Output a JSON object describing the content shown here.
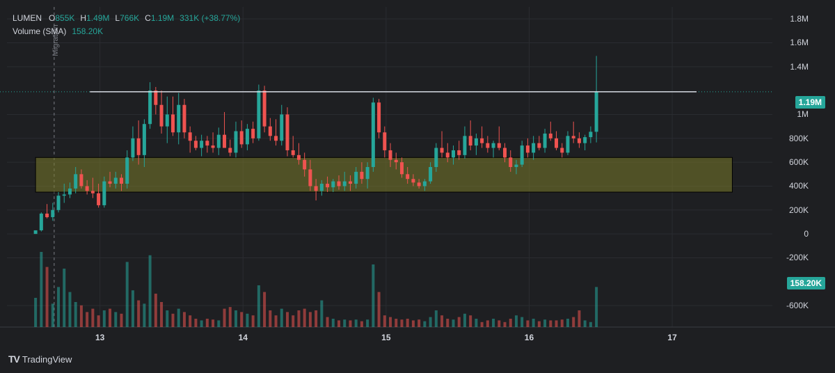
{
  "header": {
    "symbol": "LUMEN",
    "o_label": "O",
    "o_value": "855K",
    "h_label": "H",
    "h_value": "1.49M",
    "l_label": "L",
    "l_value": "766K",
    "c_label": "C",
    "c_value": "1.19M",
    "change": "331K (+38.77%)",
    "volume_label": "Volume (SMA)",
    "volume_value": "158.20K"
  },
  "price_badge": "1.19M",
  "volume_badge": "158.20K",
  "migration_label": "Migration",
  "brand": "TradingView",
  "colors": {
    "up": "#26a69a",
    "down": "#ef5350",
    "zone": "#7a7a2a",
    "background": "#1e1f22"
  },
  "chart_data": {
    "type": "candlestick",
    "y_ticks": [
      "1.8M",
      "1.6M",
      "1.4M",
      "1M",
      "800K",
      "600K",
      "400K",
      "200K",
      "0",
      "-200K",
      "-600K"
    ],
    "y_tick_values": [
      1800000,
      1600000,
      1400000,
      1000000,
      800000,
      600000,
      400000,
      200000,
      0,
      -200000,
      -600000
    ],
    "ylim": [
      -780000,
      1900000
    ],
    "x_ticks": [
      "13",
      "14",
      "15",
      "16",
      "17"
    ],
    "x_tick_values": [
      13,
      14,
      15,
      16,
      17
    ],
    "xlim": [
      12.35,
      17.7
    ],
    "resistance": {
      "value": 1190000,
      "x_start": 12.93,
      "x_end": 17.17
    },
    "zone": {
      "low": 350000,
      "high": 640000,
      "x_start": 12.55,
      "x_end": 17.42
    },
    "migration_x": 12.68,
    "candles": [
      [
        12.55,
        0,
        30000,
        0,
        30000
      ],
      [
        12.59,
        30000,
        180000,
        20000,
        170000
      ],
      [
        12.63,
        170000,
        250000,
        130000,
        140000
      ],
      [
        12.67,
        140000,
        260000,
        110000,
        200000
      ],
      [
        12.71,
        200000,
        350000,
        180000,
        320000
      ],
      [
        12.75,
        320000,
        420000,
        260000,
        330000
      ],
      [
        12.79,
        330000,
        430000,
        300000,
        380000
      ],
      [
        12.83,
        380000,
        560000,
        340000,
        500000
      ],
      [
        12.87,
        500000,
        540000,
        380000,
        400000
      ],
      [
        12.91,
        400000,
        450000,
        330000,
        360000
      ],
      [
        12.95,
        360000,
        470000,
        300000,
        340000
      ],
      [
        12.99,
        340000,
        420000,
        220000,
        240000
      ],
      [
        13.03,
        240000,
        480000,
        220000,
        440000
      ],
      [
        13.07,
        440000,
        520000,
        390000,
        420000
      ],
      [
        13.11,
        420000,
        520000,
        380000,
        470000
      ],
      [
        13.15,
        470000,
        500000,
        360000,
        420000
      ],
      [
        13.19,
        420000,
        700000,
        380000,
        640000
      ],
      [
        13.23,
        640000,
        900000,
        610000,
        800000
      ],
      [
        13.27,
        800000,
        950000,
        580000,
        660000
      ],
      [
        13.31,
        660000,
        960000,
        560000,
        920000
      ],
      [
        13.35,
        920000,
        1270000,
        880000,
        1200000
      ],
      [
        13.39,
        1200000,
        1230000,
        1000000,
        1080000
      ],
      [
        13.43,
        1080000,
        1200000,
        840000,
        900000
      ],
      [
        13.47,
        900000,
        1150000,
        760000,
        1000000
      ],
      [
        13.51,
        1000000,
        1150000,
        820000,
        850000
      ],
      [
        13.55,
        850000,
        1180000,
        750000,
        1080000
      ],
      [
        13.59,
        1080000,
        1130000,
        800000,
        850000
      ],
      [
        13.63,
        850000,
        900000,
        680000,
        780000
      ],
      [
        13.67,
        780000,
        820000,
        700000,
        720000
      ],
      [
        13.71,
        720000,
        830000,
        650000,
        780000
      ],
      [
        13.75,
        780000,
        820000,
        680000,
        740000
      ],
      [
        13.79,
        740000,
        850000,
        680000,
        720000
      ],
      [
        13.83,
        720000,
        890000,
        660000,
        830000
      ],
      [
        13.87,
        830000,
        1020000,
        730000,
        720000
      ],
      [
        13.91,
        720000,
        790000,
        650000,
        680000
      ],
      [
        13.95,
        680000,
        940000,
        640000,
        860000
      ],
      [
        13.99,
        860000,
        950000,
        720000,
        750000
      ],
      [
        14.03,
        750000,
        920000,
        700000,
        880000
      ],
      [
        14.07,
        880000,
        940000,
        760000,
        800000
      ],
      [
        14.11,
        800000,
        1250000,
        780000,
        1200000
      ],
      [
        14.15,
        1200000,
        1240000,
        850000,
        900000
      ],
      [
        14.19,
        900000,
        970000,
        780000,
        820000
      ],
      [
        14.23,
        820000,
        960000,
        740000,
        780000
      ],
      [
        14.27,
        780000,
        1080000,
        740000,
        1000000
      ],
      [
        14.31,
        1000000,
        1060000,
        650000,
        700000
      ],
      [
        14.35,
        700000,
        820000,
        640000,
        660000
      ],
      [
        14.39,
        660000,
        760000,
        580000,
        620000
      ],
      [
        14.43,
        620000,
        680000,
        480000,
        540000
      ],
      [
        14.47,
        540000,
        620000,
        360000,
        400000
      ],
      [
        14.51,
        400000,
        460000,
        280000,
        360000
      ],
      [
        14.55,
        360000,
        450000,
        320000,
        420000
      ],
      [
        14.59,
        420000,
        480000,
        350000,
        390000
      ],
      [
        14.63,
        390000,
        460000,
        350000,
        440000
      ],
      [
        14.67,
        440000,
        490000,
        370000,
        400000
      ],
      [
        14.71,
        400000,
        520000,
        360000,
        440000
      ],
      [
        14.75,
        440000,
        490000,
        360000,
        420000
      ],
      [
        14.79,
        420000,
        560000,
        380000,
        520000
      ],
      [
        14.83,
        520000,
        600000,
        420000,
        460000
      ],
      [
        14.87,
        460000,
        600000,
        380000,
        560000
      ],
      [
        14.91,
        560000,
        1140000,
        520000,
        1100000
      ],
      [
        14.95,
        1100000,
        1130000,
        800000,
        850000
      ],
      [
        14.99,
        850000,
        900000,
        640000,
        700000
      ],
      [
        15.03,
        700000,
        760000,
        560000,
        620000
      ],
      [
        15.07,
        620000,
        680000,
        540000,
        600000
      ],
      [
        15.11,
        600000,
        640000,
        470000,
        500000
      ],
      [
        15.15,
        500000,
        560000,
        420000,
        460000
      ],
      [
        15.19,
        460000,
        500000,
        400000,
        430000
      ],
      [
        15.23,
        430000,
        460000,
        380000,
        400000
      ],
      [
        15.27,
        400000,
        460000,
        360000,
        440000
      ],
      [
        15.31,
        440000,
        600000,
        420000,
        560000
      ],
      [
        15.35,
        560000,
        760000,
        520000,
        720000
      ],
      [
        15.39,
        720000,
        860000,
        640000,
        680000
      ],
      [
        15.43,
        680000,
        760000,
        600000,
        640000
      ],
      [
        15.47,
        640000,
        740000,
        580000,
        700000
      ],
      [
        15.51,
        700000,
        780000,
        620000,
        660000
      ],
      [
        15.55,
        660000,
        900000,
        630000,
        820000
      ],
      [
        15.59,
        820000,
        950000,
        700000,
        740000
      ],
      [
        15.63,
        740000,
        840000,
        660000,
        800000
      ],
      [
        15.67,
        800000,
        900000,
        720000,
        760000
      ],
      [
        15.71,
        760000,
        820000,
        680000,
        720000
      ],
      [
        15.75,
        720000,
        780000,
        640000,
        760000
      ],
      [
        15.79,
        760000,
        900000,
        700000,
        720000
      ],
      [
        15.83,
        720000,
        760000,
        600000,
        640000
      ],
      [
        15.87,
        640000,
        700000,
        520000,
        560000
      ],
      [
        15.91,
        560000,
        620000,
        500000,
        580000
      ],
      [
        15.95,
        580000,
        780000,
        560000,
        740000
      ],
      [
        15.99,
        740000,
        800000,
        640000,
        680000
      ],
      [
        16.03,
        680000,
        820000,
        620000,
        760000
      ],
      [
        16.07,
        760000,
        820000,
        700000,
        720000
      ],
      [
        16.11,
        720000,
        880000,
        680000,
        840000
      ],
      [
        16.15,
        840000,
        940000,
        780000,
        800000
      ],
      [
        16.19,
        800000,
        860000,
        700000,
        720000
      ],
      [
        16.23,
        720000,
        760000,
        640000,
        680000
      ],
      [
        16.27,
        680000,
        860000,
        660000,
        820000
      ],
      [
        16.31,
        820000,
        940000,
        760000,
        800000
      ],
      [
        16.35,
        800000,
        850000,
        720000,
        760000
      ],
      [
        16.39,
        760000,
        830000,
        700000,
        810000
      ],
      [
        16.43,
        810000,
        900000,
        760000,
        855000
      ],
      [
        16.47,
        855000,
        1490000,
        766000,
        1190000
      ]
    ],
    "volume": [
      [
        12.55,
        0.35
      ],
      [
        12.59,
        0.9
      ],
      [
        12.63,
        0.72
      ],
      [
        12.67,
        0.28
      ],
      [
        12.71,
        0.48
      ],
      [
        12.75,
        0.7
      ],
      [
        12.79,
        0.42
      ],
      [
        12.83,
        0.3
      ],
      [
        12.87,
        0.26
      ],
      [
        12.91,
        0.18
      ],
      [
        12.95,
        0.22
      ],
      [
        12.99,
        0.14
      ],
      [
        13.03,
        0.2
      ],
      [
        13.07,
        0.22
      ],
      [
        13.11,
        0.18
      ],
      [
        13.15,
        0.16
      ],
      [
        13.19,
        0.78
      ],
      [
        13.23,
        0.44
      ],
      [
        13.27,
        0.32
      ],
      [
        13.31,
        0.28
      ],
      [
        13.35,
        0.86
      ],
      [
        13.39,
        0.4
      ],
      [
        13.43,
        0.3
      ],
      [
        13.47,
        0.2
      ],
      [
        13.51,
        0.16
      ],
      [
        13.55,
        0.22
      ],
      [
        13.59,
        0.18
      ],
      [
        13.63,
        0.14
      ],
      [
        13.67,
        0.1
      ],
      [
        13.71,
        0.08
      ],
      [
        13.75,
        0.1
      ],
      [
        13.79,
        0.09
      ],
      [
        13.83,
        0.08
      ],
      [
        13.87,
        0.22
      ],
      [
        13.91,
        0.24
      ],
      [
        13.95,
        0.2
      ],
      [
        13.99,
        0.18
      ],
      [
        14.03,
        0.16
      ],
      [
        14.07,
        0.14
      ],
      [
        14.11,
        0.5
      ],
      [
        14.15,
        0.42
      ],
      [
        14.19,
        0.2
      ],
      [
        14.23,
        0.14
      ],
      [
        14.27,
        0.22
      ],
      [
        14.31,
        0.18
      ],
      [
        14.35,
        0.14
      ],
      [
        14.39,
        0.2
      ],
      [
        14.43,
        0.22
      ],
      [
        14.47,
        0.18
      ],
      [
        14.51,
        0.2
      ],
      [
        14.55,
        0.32
      ],
      [
        14.59,
        0.12
      ],
      [
        14.63,
        0.1
      ],
      [
        14.67,
        0.08
      ],
      [
        14.71,
        0.09
      ],
      [
        14.75,
        0.08
      ],
      [
        14.79,
        0.09
      ],
      [
        14.83,
        0.07
      ],
      [
        14.87,
        0.09
      ],
      [
        14.91,
        0.75
      ],
      [
        14.95,
        0.42
      ],
      [
        14.99,
        0.14
      ],
      [
        15.03,
        0.12
      ],
      [
        15.07,
        0.1
      ],
      [
        15.11,
        0.09
      ],
      [
        15.15,
        0.1
      ],
      [
        15.19,
        0.08
      ],
      [
        15.23,
        0.09
      ],
      [
        15.27,
        0.07
      ],
      [
        15.31,
        0.12
      ],
      [
        15.35,
        0.2
      ],
      [
        15.39,
        0.14
      ],
      [
        15.43,
        0.1
      ],
      [
        15.47,
        0.09
      ],
      [
        15.51,
        0.12
      ],
      [
        15.55,
        0.16
      ],
      [
        15.59,
        0.14
      ],
      [
        15.63,
        0.1
      ],
      [
        15.67,
        0.06
      ],
      [
        15.71,
        0.08
      ],
      [
        15.75,
        0.1
      ],
      [
        15.79,
        0.08
      ],
      [
        15.83,
        0.06
      ],
      [
        15.87,
        0.1
      ],
      [
        15.91,
        0.14
      ],
      [
        15.95,
        0.12
      ],
      [
        15.99,
        0.08
      ],
      [
        16.03,
        0.1
      ],
      [
        16.07,
        0.07
      ],
      [
        16.11,
        0.09
      ],
      [
        16.15,
        0.08
      ],
      [
        16.19,
        0.08
      ],
      [
        16.23,
        0.09
      ],
      [
        16.27,
        0.1
      ],
      [
        16.31,
        0.12
      ],
      [
        16.35,
        0.2
      ],
      [
        16.39,
        0.08
      ],
      [
        16.43,
        0.06
      ],
      [
        16.47,
        0.48
      ]
    ]
  }
}
